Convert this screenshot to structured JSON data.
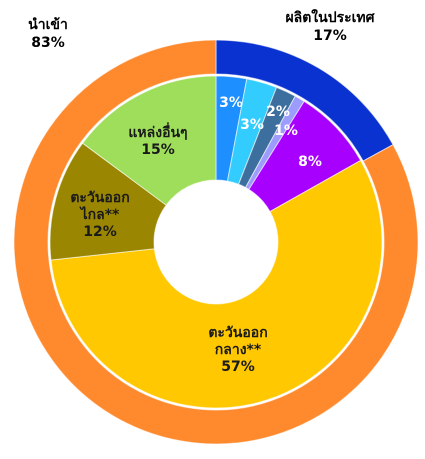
{
  "chart_data": {
    "type": "donut",
    "rings": [
      {
        "categories": [
          "ผลิตในประเทศ",
          "นำเข้า"
        ],
        "values": [
          17,
          83
        ],
        "value_labels": [
          "17%",
          "83%"
        ],
        "colors": [
          "#0a32d0",
          "#ff8a2e"
        ]
      },
      {
        "categories": [
          null,
          null,
          null,
          null,
          null,
          "ตะวันออก\nกลาง**",
          "ตะวันออก\nไกล**",
          "แหล่งอื่นๆ"
        ],
        "values": [
          3,
          3,
          2,
          1,
          8,
          57,
          12,
          15
        ],
        "value_labels": [
          "3%",
          "3%",
          "2%",
          "1%",
          "8%",
          "57%",
          "12%",
          "15%"
        ],
        "colors": [
          "#1e8fff",
          "#33ccff",
          "#3d6f9e",
          "#9c9cff",
          "#a800ff",
          "#ffc800",
          "#9a8600",
          "#9ede5a"
        ]
      }
    ]
  }
}
